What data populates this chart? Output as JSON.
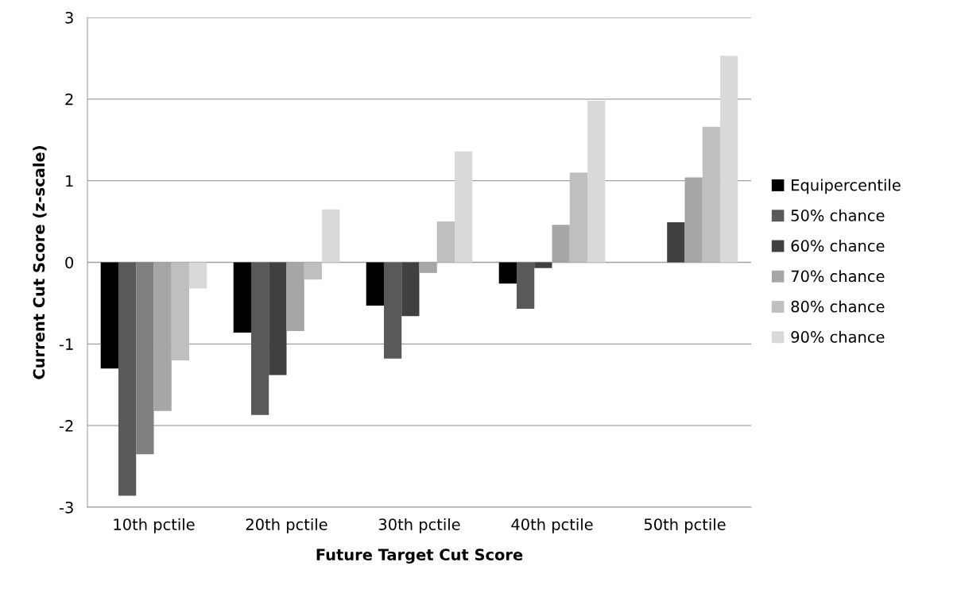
{
  "chart_data": {
    "type": "bar",
    "xlabel": "Future Target Cut Score",
    "ylabel": "Current Cut Score (z-scale)",
    "categories": [
      "10th pctile",
      "20th pctile",
      "30th pctile",
      "40th pctile",
      "50th pctile"
    ],
    "series": [
      {
        "name": "Equipercentile",
        "color": "#000000",
        "values": [
          -1.3,
          -0.86,
          -0.53,
          -0.26,
          null
        ]
      },
      {
        "name": "50% chance",
        "color": "#595959",
        "values": [
          -2.86,
          -1.87,
          -1.18,
          -0.57,
          null
        ]
      },
      {
        "name": "60% chance",
        "color": "#404040",
        "colors": [
          "#7f7f7f",
          "#404040",
          "#404040",
          "#404040",
          "#404040"
        ],
        "values": [
          -2.35,
          -1.38,
          -0.66,
          -0.07,
          0.49
        ]
      },
      {
        "name": "70% chance",
        "color": "#a6a6a6",
        "values": [
          -1.82,
          -0.84,
          -0.13,
          0.46,
          1.04
        ]
      },
      {
        "name": "80% chance",
        "color": "#bfbfbf",
        "values": [
          -1.2,
          -0.21,
          0.5,
          1.1,
          1.66
        ]
      },
      {
        "name": "90% chance",
        "color": "#d9d9d9",
        "values": [
          -0.32,
          0.65,
          1.36,
          1.98,
          2.53
        ]
      }
    ],
    "ylim": [
      -3,
      3
    ],
    "yticks": [
      -3,
      -2,
      -1,
      0,
      1,
      2,
      3
    ],
    "grid": "y",
    "legend": "right"
  }
}
